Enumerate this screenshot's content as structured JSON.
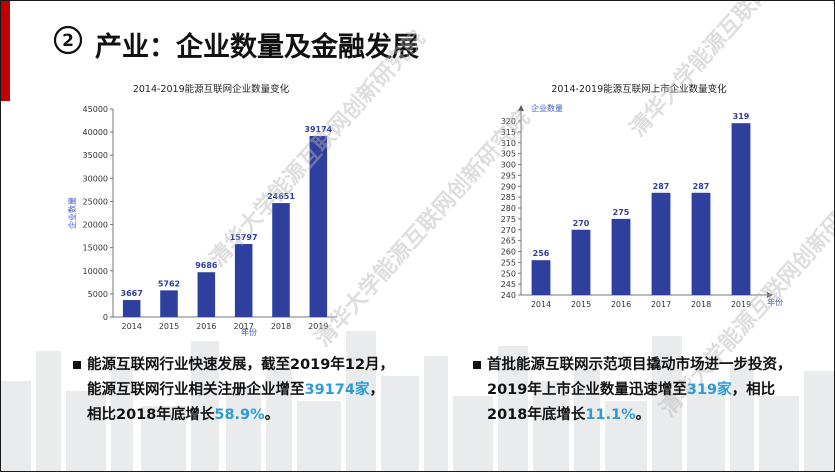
{
  "page": {
    "number": "②",
    "title": "产业：企业数量及金融发展",
    "watermark": "清华大学能源互联网创新研究院"
  },
  "chart_data": [
    {
      "type": "bar",
      "title": "2014-2019能源互联网企业数量变化",
      "xlabel": "年份",
      "ylabel": "企业数量",
      "categories": [
        "2014",
        "2015",
        "2016",
        "2017",
        "2018",
        "2019"
      ],
      "values": [
        3667,
        5762,
        9686,
        15797,
        24651,
        39174
      ],
      "ylim": [
        0,
        45000
      ],
      "yticks": [
        0,
        5000,
        10000,
        15000,
        20000,
        25000,
        30000,
        35000,
        40000,
        45000
      ],
      "bar_color": "#2e3f9e",
      "label_color": "#2e3f9e",
      "grid": false
    },
    {
      "type": "bar",
      "title": "2014-2019能源互联网上市企业数量变化",
      "xlabel": "年份",
      "ylabel": "企业数量",
      "categories": [
        "2014",
        "2015",
        "2016",
        "2017",
        "2018",
        "2019"
      ],
      "values": [
        256,
        270,
        275,
        287,
        287,
        319
      ],
      "ylim": [
        240,
        320
      ],
      "yticks": [
        240,
        245,
        250,
        255,
        260,
        265,
        270,
        275,
        280,
        285,
        290,
        295,
        300,
        305,
        310,
        315,
        320
      ],
      "bar_color": "#2e3f9e",
      "label_color": "#2e3f9e",
      "grid": false
    }
  ],
  "bullets_left": {
    "line1": "能源互联网行业快速发展，截至2019年12月，",
    "line2_pre": "能源互联网行业相关注册企业增至",
    "line2_hl": "39174家",
    "line2_post": "，",
    "line3_pre": "相比2018年底增长",
    "line3_hl": "58.9%",
    "line3_post": "。"
  },
  "bullets_right": {
    "line1": "首批能源互联网示范项目撬动市场进一步投资，",
    "line2_pre": "2019年上市企业数量迅速增至",
    "line2_hl": "319家",
    "line2_post": "，相比",
    "line3_pre": "2018年底增长",
    "line3_hl": "11.1%",
    "line3_post": "。"
  },
  "colors": {
    "accent": "#c00000",
    "highlight": "#2e9bd6",
    "bar": "#2e3f9e"
  }
}
